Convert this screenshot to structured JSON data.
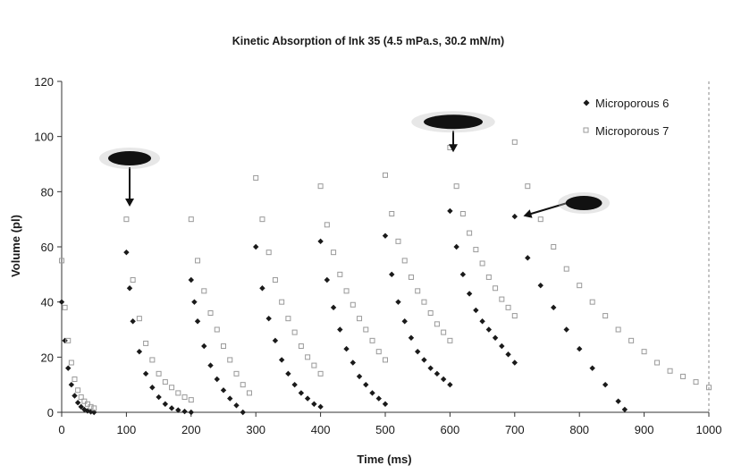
{
  "chart_data": {
    "type": "scatter",
    "title": "Kinetic Absorption of Ink 35 (4.5 mPa.s, 30.2 mN/m)",
    "xlabel": "Time (ms)",
    "ylabel": "Volume (pl)",
    "xlim": [
      0,
      1000
    ],
    "ylim": [
      0,
      120
    ],
    "xticks": [
      0,
      100,
      200,
      300,
      400,
      500,
      600,
      700,
      800,
      900,
      1000
    ],
    "yticks": [
      0,
      20,
      40,
      60,
      80,
      100,
      120
    ],
    "grid": false,
    "legend_position": "top-right",
    "colors": {
      "microporous_6": "#1a1a1a",
      "microporous_7": "#9a9a9a",
      "axes": "#333333"
    },
    "series": [
      {
        "name": "Microporous 6",
        "marker": "diamond",
        "color": "#1a1a1a",
        "segments": [
          {
            "x": [
              0,
              5,
              10,
              15,
              20,
              25,
              30,
              35,
              40,
              45,
              50
            ],
            "y": [
              40,
              26,
              16,
              10,
              6,
              3.5,
              2,
              1,
              0.5,
              0.2,
              0
            ]
          },
          {
            "x": [
              100,
              105,
              110,
              120,
              130,
              140,
              150,
              160,
              170,
              180,
              190,
              200
            ],
            "y": [
              58,
              45,
              33,
              22,
              14,
              9,
              5.5,
              3,
              1.5,
              0.8,
              0.3,
              0
            ]
          },
          {
            "x": [
              200,
              205,
              210,
              220,
              230,
              240,
              250,
              260,
              270,
              280
            ],
            "y": [
              48,
              40,
              33,
              24,
              17,
              12,
              8,
              5,
              2.5,
              0
            ]
          },
          {
            "x": [
              300,
              310,
              320,
              330,
              340,
              350,
              360,
              370,
              380,
              390,
              400
            ],
            "y": [
              60,
              45,
              34,
              26,
              19,
              14,
              10,
              7,
              5,
              3,
              2
            ]
          },
          {
            "x": [
              400,
              410,
              420,
              430,
              440,
              450,
              460,
              470,
              480,
              490,
              500
            ],
            "y": [
              62,
              48,
              38,
              30,
              23,
              18,
              13,
              10,
              7,
              5,
              3
            ]
          },
          {
            "x": [
              500,
              510,
              520,
              530,
              540,
              550,
              560,
              570,
              580,
              590,
              600
            ],
            "y": [
              64,
              50,
              40,
              33,
              27,
              22,
              19,
              16,
              14,
              12,
              10
            ]
          },
          {
            "x": [
              600,
              610,
              620,
              630,
              640,
              650,
              660,
              670,
              680,
              690,
              700
            ],
            "y": [
              73,
              60,
              50,
              43,
              37,
              33,
              30,
              27,
              24,
              21,
              18
            ]
          },
          {
            "x": [
              700,
              720,
              740,
              760,
              780,
              800,
              820,
              840,
              860,
              870
            ],
            "y": [
              71,
              56,
              46,
              38,
              30,
              23,
              16,
              10,
              4,
              1
            ]
          }
        ]
      },
      {
        "name": "Microporous 7",
        "marker": "square",
        "color": "#9a9a9a",
        "segments": [
          {
            "x": [
              0,
              5,
              10,
              15,
              20,
              25,
              30,
              35,
              40,
              45,
              50
            ],
            "y": [
              55,
              38,
              26,
              18,
              12,
              8,
              5.5,
              4,
              3,
              2,
              1.5
            ]
          },
          {
            "x": [
              100,
              110,
              120,
              130,
              140,
              150,
              160,
              170,
              180,
              190,
              200
            ],
            "y": [
              70,
              48,
              34,
              25,
              19,
              14,
              11,
              9,
              7,
              5.5,
              4.5
            ]
          },
          {
            "x": [
              200,
              210,
              220,
              230,
              240,
              250,
              260,
              270,
              280,
              290
            ],
            "y": [
              70,
              55,
              44,
              36,
              30,
              24,
              19,
              14,
              10,
              7
            ]
          },
          {
            "x": [
              300,
              310,
              320,
              330,
              340,
              350,
              360,
              370,
              380,
              390,
              400
            ],
            "y": [
              85,
              70,
              58,
              48,
              40,
              34,
              29,
              24,
              20,
              17,
              14
            ]
          },
          {
            "x": [
              400,
              410,
              420,
              430,
              440,
              450,
              460,
              470,
              480,
              490,
              500
            ],
            "y": [
              82,
              68,
              58,
              50,
              44,
              39,
              34,
              30,
              26,
              22,
              19
            ]
          },
          {
            "x": [
              500,
              510,
              520,
              530,
              540,
              550,
              560,
              570,
              580,
              590,
              600
            ],
            "y": [
              86,
              72,
              62,
              55,
              49,
              44,
              40,
              36,
              32,
              29,
              26
            ]
          },
          {
            "x": [
              600,
              610,
              620,
              630,
              640,
              650,
              660,
              670,
              680,
              690,
              700
            ],
            "y": [
              96,
              82,
              72,
              65,
              59,
              54,
              49,
              45,
              41,
              38,
              35
            ]
          },
          {
            "x": [
              700,
              720,
              740,
              760,
              780,
              800,
              820,
              840,
              860,
              880,
              900,
              920,
              940,
              960,
              980,
              1000
            ],
            "y": [
              98,
              82,
              70,
              60,
              52,
              46,
              40,
              35,
              30,
              26,
              22,
              18,
              15,
              13,
              11,
              9
            ]
          }
        ]
      }
    ],
    "annotations": [
      {
        "type": "arrow-marker",
        "target_x": 105,
        "target_y": 72
      },
      {
        "type": "arrow-marker",
        "target_x": 605,
        "target_y": 93
      },
      {
        "type": "arrow-marker",
        "target_x": 705,
        "target_y": 72
      }
    ]
  }
}
